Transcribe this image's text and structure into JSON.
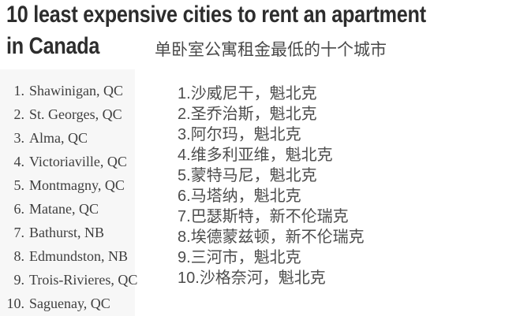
{
  "header": {
    "title_line1": "10 least expensive cities to rent an apartment",
    "title_line2": "in Canada",
    "subtitle_zh": "单卧室公寓租金最低的十个城市"
  },
  "english_list": {
    "items": [
      {
        "num": "1.",
        "label": "Shawinigan, QC"
      },
      {
        "num": "2.",
        "label": "St. Georges, QC"
      },
      {
        "num": "3.",
        "label": "Alma, QC"
      },
      {
        "num": "4.",
        "label": "Victoriaville, QC"
      },
      {
        "num": "5.",
        "label": "Montmagny, QC"
      },
      {
        "num": "6.",
        "label": "Matane, QC"
      },
      {
        "num": "7.",
        "label": "Bathurst, NB"
      },
      {
        "num": "8.",
        "label": "Edmundston, NB"
      },
      {
        "num": "9.",
        "label": "Trois-Rivieres, QC"
      },
      {
        "num": "10.",
        "label": "Saguenay, QC"
      }
    ]
  },
  "chinese_list": {
    "items": [
      {
        "num": "1.",
        "label": "沙威尼干，魁北克"
      },
      {
        "num": "2.",
        "label": "圣乔治斯，魁北克"
      },
      {
        "num": "3.",
        "label": "阿尔玛，魁北克"
      },
      {
        "num": "4.",
        "label": "维多利亚维，魁北克"
      },
      {
        "num": "5.",
        "label": "蒙特马尼，魁北克"
      },
      {
        "num": "6.",
        "label": "马塔纳，魁北克"
      },
      {
        "num": "7.",
        "label": "巴瑟斯特，新不伦瑞克"
      },
      {
        "num": "8.",
        "label": "埃德蒙兹顿，新不伦瑞克"
      },
      {
        "num": "9.",
        "label": "三河市，魁北克"
      },
      {
        "num": "10.",
        "label": "沙格奈河，魁北克"
      }
    ]
  },
  "colors": {
    "title": "#2d2d2d",
    "subtitle": "#4a4a4a",
    "english_text": "#3e3e3e",
    "chinese_text": "#4d4d4d",
    "background": "#ffffff",
    "left_panel": "#f7f7f7"
  }
}
